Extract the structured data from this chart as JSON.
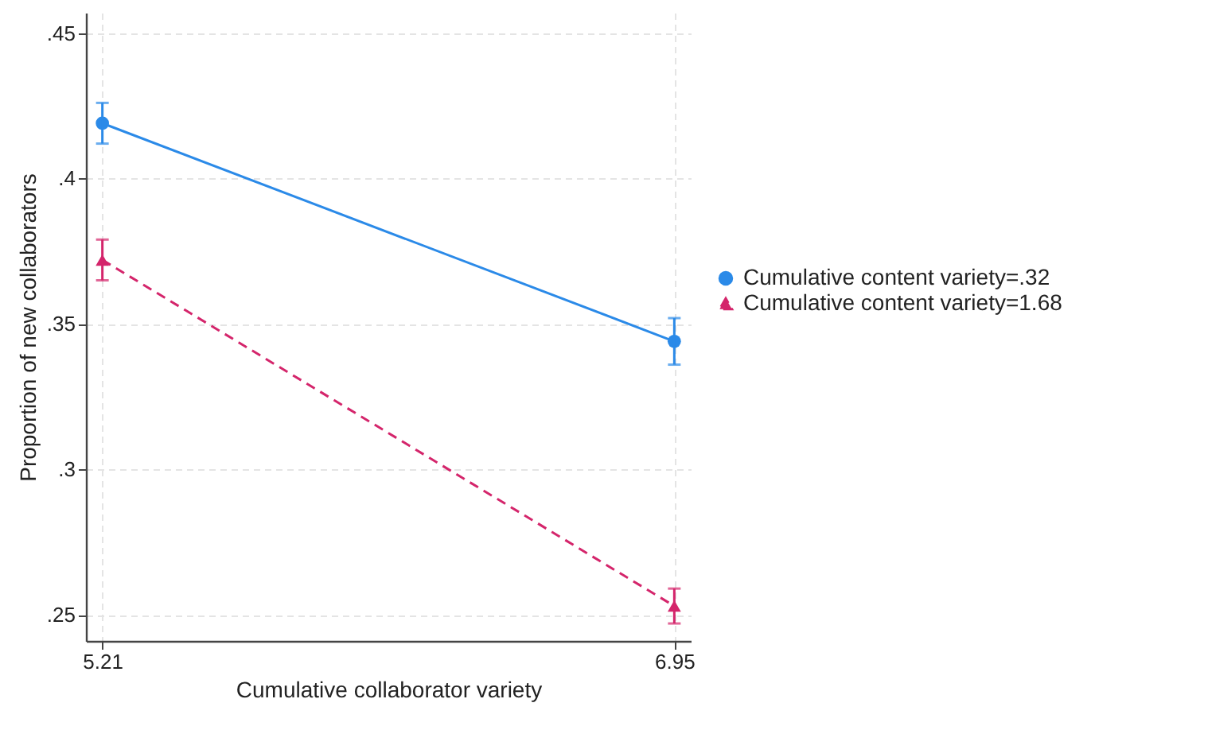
{
  "chart_data": {
    "type": "line",
    "xlabel": "Cumulative collaborator variety",
    "ylabel": "Proportion of new collaborators",
    "x": [
      5.21,
      6.95
    ],
    "series": [
      {
        "name": "Cumulative content variety=.32",
        "color": "#2b8ae8",
        "values": [
          0.419,
          0.344
        ],
        "errors": [
          [
            0.412,
            0.426
          ],
          [
            0.336,
            0.352
          ]
        ],
        "marker": "circle",
        "line_style": "solid"
      },
      {
        "name": "Cumulative content variety=1.68",
        "color": "#d4256b",
        "values": [
          0.372,
          0.253
        ],
        "errors": [
          [
            0.365,
            0.379
          ],
          [
            0.247,
            0.259
          ]
        ],
        "marker": "triangle",
        "line_style": "dashed"
      }
    ],
    "xlim": [
      5.16,
      7.0
    ],
    "xticks": [
      5.21,
      6.95
    ],
    "ylim": [
      0.241,
      0.457
    ],
    "yticks": [
      {
        "value": 0.25,
        "label": ".25"
      },
      {
        "value": 0.3,
        "label": ".3"
      },
      {
        "value": 0.35,
        "label": ".35"
      },
      {
        "value": 0.4,
        "label": ".4"
      },
      {
        "value": 0.45,
        "label": ".45"
      }
    ],
    "grid": true,
    "legend": "right"
  }
}
